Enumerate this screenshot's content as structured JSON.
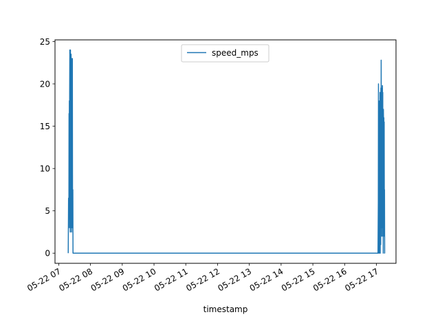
{
  "chart_data": {
    "type": "line",
    "title": "",
    "xlabel": "timestamp",
    "ylabel": "",
    "x_tick_labels": [
      "05-22 07",
      "05-22 08",
      "05-22 09",
      "05-22 10",
      "05-22 11",
      "05-22 12",
      "05-22 13",
      "05-22 14",
      "05-22 15",
      "05-22 16",
      "05-22 17"
    ],
    "x_tick_hours": [
      7,
      8,
      9,
      10,
      11,
      12,
      13,
      14,
      15,
      16,
      17
    ],
    "xlim": [
      "2024-05-22 06:53",
      "2024-05-22 17:37"
    ],
    "y_ticks": [
      0,
      5,
      10,
      15,
      20,
      25
    ],
    "y_tick_labels": [
      "0",
      "5",
      "10",
      "15",
      "20",
      "25"
    ],
    "ylim": [
      -1.2,
      25.2
    ],
    "grid": false,
    "legend": {
      "position": "upper center",
      "entries": [
        "speed_mps"
      ]
    },
    "series": [
      {
        "name": "speed_mps",
        "color": "#1f77b4",
        "x_hours": [
          7.3,
          7.31,
          7.32,
          7.325,
          7.33,
          7.335,
          7.34,
          7.345,
          7.35,
          7.355,
          7.36,
          7.365,
          7.37,
          7.375,
          7.38,
          7.385,
          7.39,
          7.395,
          7.4,
          7.405,
          7.41,
          7.415,
          7.42,
          7.425,
          7.43,
          7.435,
          7.44,
          7.445,
          7.45,
          7.46,
          7.47,
          7.48,
          8.0,
          10.0,
          12.0,
          14.0,
          16.0,
          17.0,
          17.05,
          17.06,
          17.065,
          17.07,
          17.075,
          17.08,
          17.085,
          17.09,
          17.095,
          17.1,
          17.105,
          17.11,
          17.115,
          17.12,
          17.125,
          17.13,
          17.135,
          17.14,
          17.145,
          17.15,
          17.155,
          17.16,
          17.165,
          17.17,
          17.175,
          17.18,
          17.185,
          17.19,
          17.195,
          17.2,
          17.205,
          17.21,
          17.215,
          17.22,
          17.225,
          17.23,
          17.235,
          17.24,
          17.245,
          17.25,
          17.255,
          17.26,
          17.27
        ],
        "values": [
          0,
          6.5,
          3,
          16.5,
          5,
          18,
          4,
          19,
          24,
          3,
          23,
          2.5,
          24,
          4,
          22,
          3,
          23.5,
          3,
          20,
          2.5,
          23,
          5,
          22,
          3,
          23,
          7.5,
          4,
          7.5,
          0,
          0,
          0,
          0,
          0,
          0,
          0,
          0,
          0,
          0,
          0,
          6,
          20,
          0,
          18,
          1,
          16,
          17,
          5,
          0,
          18,
          3,
          19,
          0,
          16.5,
          18,
          1,
          19.5,
          3,
          22.8,
          16,
          4,
          17,
          2,
          19.5,
          16,
          3,
          19.8,
          4,
          19,
          2,
          16,
          0,
          17,
          15.5,
          2,
          16,
          4.5,
          15.5,
          3,
          7.5,
          0,
          0
        ]
      }
    ]
  }
}
